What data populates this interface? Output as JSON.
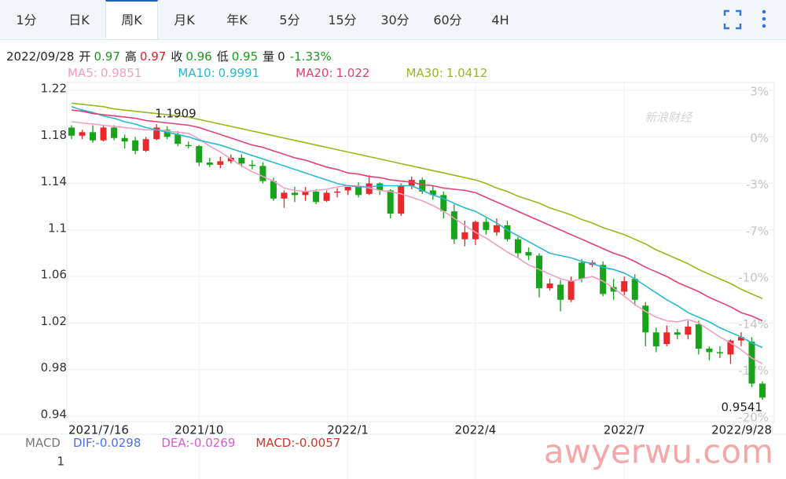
{
  "tabs": [
    {
      "label": "1分"
    },
    {
      "label": "日K"
    },
    {
      "label": "周K",
      "active": true
    },
    {
      "label": "月K"
    },
    {
      "label": "年K"
    },
    {
      "label": "5分"
    },
    {
      "label": "15分"
    },
    {
      "label": "30分"
    },
    {
      "label": "60分"
    },
    {
      "label": "4H"
    }
  ],
  "info": {
    "date": "2022/09/28",
    "items": [
      {
        "label": "开",
        "value": "0.97",
        "color": "#1a9a1a"
      },
      {
        "label": "高",
        "value": "0.97",
        "color": "#e02020"
      },
      {
        "label": "收",
        "value": "0.96",
        "color": "#1a9a1a"
      },
      {
        "label": "低",
        "value": "0.95",
        "color": "#1a9a1a"
      },
      {
        "label": "量",
        "value": "0",
        "color": "#222222"
      },
      {
        "value": "-1.33%",
        "color": "#1a9a1a"
      }
    ]
  },
  "watermarks": [
    "新浪财经",
    "awyerwu.com"
  ],
  "chart_data": {
    "type": "candlestick",
    "up_color": "#e8282b",
    "down_color": "#17a31a",
    "grid": true,
    "categories": [
      "2021/7/16",
      null,
      null,
      null,
      null,
      null,
      null,
      null,
      null,
      null,
      null,
      null,
      "2021/10",
      null,
      null,
      null,
      null,
      null,
      null,
      null,
      null,
      null,
      null,
      null,
      null,
      null,
      "2022/1",
      null,
      null,
      null,
      null,
      null,
      null,
      null,
      null,
      null,
      null,
      null,
      "2022/4",
      null,
      null,
      null,
      null,
      null,
      null,
      null,
      null,
      null,
      null,
      null,
      null,
      null,
      "2022/7",
      null,
      null,
      null,
      null,
      null,
      null,
      null,
      null,
      null,
      null,
      null,
      null,
      "2022/9/28"
    ],
    "open": [
      1.188,
      1.181,
      1.184,
      1.177,
      1.188,
      1.179,
      1.177,
      1.168,
      1.178,
      1.186,
      1.182,
      1.173,
      1.172,
      1.158,
      1.156,
      1.159,
      1.162,
      1.156,
      1.155,
      1.142,
      1.127,
      1.132,
      1.13,
      1.133,
      1.125,
      1.132,
      1.134,
      1.137,
      1.131,
      1.14,
      1.134,
      1.114,
      1.138,
      1.143,
      1.134,
      1.13,
      1.116,
      1.092,
      1.092,
      1.107,
      1.098,
      1.104,
      1.092,
      1.081,
      1.078,
      1.05,
      1.053,
      1.04,
      1.072,
      1.07,
      1.07,
      1.051,
      1.047,
      1.058,
      1.035,
      1.012,
      1.002,
      1.012,
      1.01,
      1.019,
      0.998,
      0.995,
      0.993,
      1.005,
      1.004,
      0.968
    ],
    "high": [
      1.19,
      1.186,
      1.19,
      1.19,
      1.19,
      1.182,
      1.18,
      1.18,
      1.1909,
      1.189,
      1.185,
      1.176,
      1.173,
      1.162,
      1.163,
      1.165,
      1.165,
      1.16,
      1.158,
      1.145,
      1.134,
      1.137,
      1.137,
      1.135,
      1.134,
      1.136,
      1.137,
      1.141,
      1.147,
      1.141,
      1.135,
      1.14,
      1.146,
      1.145,
      1.138,
      1.133,
      1.122,
      1.108,
      1.108,
      1.11,
      1.11,
      1.108,
      1.094,
      1.085,
      1.08,
      1.058,
      1.057,
      1.06,
      1.075,
      1.074,
      1.073,
      1.058,
      1.06,
      1.062,
      1.038,
      1.016,
      1.018,
      1.015,
      1.022,
      1.022,
      1.0,
      1.0,
      1.006,
      1.012,
      1.008,
      0.97
    ],
    "low": [
      1.178,
      1.178,
      1.175,
      1.176,
      1.177,
      1.17,
      1.165,
      1.167,
      1.177,
      1.178,
      1.172,
      1.17,
      1.155,
      1.154,
      1.153,
      1.157,
      1.154,
      1.152,
      1.14,
      1.125,
      1.119,
      1.124,
      1.125,
      1.122,
      1.124,
      1.128,
      1.13,
      1.128,
      1.13,
      1.13,
      1.11,
      1.112,
      1.135,
      1.131,
      1.126,
      1.11,
      1.088,
      1.086,
      1.087,
      1.096,
      1.095,
      1.09,
      1.076,
      1.074,
      1.042,
      1.048,
      1.03,
      1.038,
      1.055,
      1.068,
      1.043,
      1.04,
      1.044,
      1.035,
      1.0,
      0.995,
      1.0,
      1.006,
      1.006,
      0.993,
      0.988,
      0.99,
      0.985,
      1.0,
      0.965,
      0.9541
    ],
    "close": [
      1.181,
      1.184,
      1.177,
      1.188,
      1.179,
      1.176,
      1.168,
      1.178,
      1.188,
      1.18,
      1.174,
      1.172,
      1.158,
      1.156,
      1.159,
      1.162,
      1.157,
      1.155,
      1.142,
      1.127,
      1.132,
      1.13,
      1.133,
      1.124,
      1.132,
      1.133,
      1.137,
      1.13,
      1.14,
      1.134,
      1.114,
      1.138,
      1.143,
      1.133,
      1.13,
      1.116,
      1.092,
      1.098,
      1.107,
      1.1,
      1.104,
      1.092,
      1.08,
      1.078,
      1.05,
      1.054,
      1.04,
      1.056,
      1.058,
      1.072,
      1.045,
      1.047,
      1.056,
      1.04,
      1.012,
      1.0,
      1.012,
      1.01,
      1.017,
      0.998,
      0.995,
      0.994,
      1.005,
      1.008,
      0.968,
      0.956
    ],
    "series": [
      {
        "name": "MA5:",
        "legend_value": 0.9851,
        "color": "#f19ec2",
        "values": [
          1.193,
          1.192,
          1.191,
          1.19,
          1.189,
          1.188,
          1.187,
          1.186,
          1.186,
          1.185,
          1.184,
          1.183,
          1.178,
          1.172,
          1.167,
          1.161,
          1.155,
          1.15,
          1.146,
          1.142,
          1.136,
          1.134,
          1.133,
          1.134,
          1.135,
          1.137,
          1.138,
          1.138,
          1.136,
          1.134,
          1.133,
          1.131,
          1.128,
          1.125,
          1.121,
          1.116,
          1.11,
          1.104,
          1.098,
          1.093,
          1.087,
          1.081,
          1.076,
          1.07,
          1.066,
          1.062,
          1.058,
          1.056,
          1.058,
          1.06,
          1.056,
          1.05,
          1.043,
          1.036,
          1.03,
          1.025,
          1.022,
          1.021,
          1.023,
          1.02,
          1.014,
          1.008,
          1.003,
          0.997,
          0.99,
          0.985
        ]
      },
      {
        "name": "MA10:",
        "legend_value": 0.9991,
        "color": "#27b8d2",
        "values": [
          1.206,
          1.203,
          1.201,
          1.198,
          1.196,
          1.193,
          1.191,
          1.188,
          1.186,
          1.184,
          1.182,
          1.18,
          1.177,
          1.175,
          1.173,
          1.17,
          1.167,
          1.164,
          1.161,
          1.158,
          1.155,
          1.152,
          1.149,
          1.146,
          1.143,
          1.14,
          1.138,
          1.137,
          1.137,
          1.138,
          1.138,
          1.138,
          1.138,
          1.134,
          1.13,
          1.127,
          1.123,
          1.119,
          1.116,
          1.111,
          1.106,
          1.1,
          1.095,
          1.09,
          1.085,
          1.08,
          1.078,
          1.076,
          1.073,
          1.071,
          1.068,
          1.066,
          1.063,
          1.058,
          1.052,
          1.046,
          1.04,
          1.035,
          1.029,
          1.025,
          1.021,
          1.016,
          1.012,
          1.008,
          1.003,
          0.999
        ]
      },
      {
        "name": "MA20:",
        "legend_value": 1.022,
        "color": "#e0416f",
        "values": [
          1.203,
          1.202,
          1.2,
          1.199,
          1.198,
          1.197,
          1.196,
          1.194,
          1.193,
          1.192,
          1.191,
          1.19,
          1.188,
          1.185,
          1.182,
          1.179,
          1.176,
          1.173,
          1.171,
          1.168,
          1.165,
          1.162,
          1.16,
          1.157,
          1.154,
          1.152,
          1.149,
          1.148,
          1.146,
          1.145,
          1.143,
          1.142,
          1.141,
          1.139,
          1.138,
          1.136,
          1.135,
          1.134,
          1.132,
          1.128,
          1.124,
          1.12,
          1.116,
          1.112,
          1.108,
          1.104,
          1.1,
          1.096,
          1.092,
          1.088,
          1.084,
          1.08,
          1.077,
          1.073,
          1.068,
          1.064,
          1.06,
          1.055,
          1.051,
          1.047,
          1.042,
          1.038,
          1.034,
          1.029,
          1.026,
          1.022
        ]
      },
      {
        "name": "MA30:",
        "legend_value": 1.0412,
        "color": "#9db51c",
        "values": [
          1.209,
          1.208,
          1.207,
          1.206,
          1.204,
          1.203,
          1.202,
          1.201,
          1.2,
          1.199,
          1.198,
          1.197,
          1.195,
          1.193,
          1.191,
          1.189,
          1.187,
          1.185,
          1.183,
          1.181,
          1.179,
          1.177,
          1.175,
          1.173,
          1.171,
          1.169,
          1.167,
          1.165,
          1.163,
          1.161,
          1.159,
          1.157,
          1.155,
          1.153,
          1.151,
          1.149,
          1.147,
          1.145,
          1.143,
          1.14,
          1.136,
          1.133,
          1.129,
          1.126,
          1.123,
          1.119,
          1.116,
          1.113,
          1.109,
          1.106,
          1.102,
          1.099,
          1.096,
          1.092,
          1.088,
          1.083,
          1.079,
          1.075,
          1.071,
          1.066,
          1.062,
          1.058,
          1.054,
          1.049,
          1.045,
          1.041
        ]
      }
    ],
    "ylim": [
      0.94,
      1.22
    ],
    "yticks": [
      0.94,
      0.98,
      1.02,
      1.06,
      1.1,
      1.14,
      1.18,
      1.22
    ],
    "y2lim": [
      -20.34,
      3.39
    ],
    "y2ticks": [
      {
        "value": 3.39,
        "label": "3%"
      },
      {
        "value": 0,
        "label": "0%"
      },
      {
        "value": -3.39,
        "label": "-3%"
      },
      {
        "value": -6.78,
        "label": "-7%"
      },
      {
        "value": -10.17,
        "label": "-10%"
      },
      {
        "value": -13.56,
        "label": "-14%"
      },
      {
        "value": -16.95,
        "label": "-17%"
      },
      {
        "value": -20.34,
        "label": "-20%"
      }
    ],
    "macd": {
      "title": "MACD",
      "items": [
        {
          "name": "DIF:",
          "value": -0.0298,
          "color": "#4a6ef0"
        },
        {
          "name": "DEA:",
          "value": -0.0269,
          "color": "#d65cd6"
        },
        {
          "name": "MACD:",
          "value": -0.0057,
          "color": "#c0392b"
        }
      ],
      "yticks": [
        1
      ]
    }
  }
}
